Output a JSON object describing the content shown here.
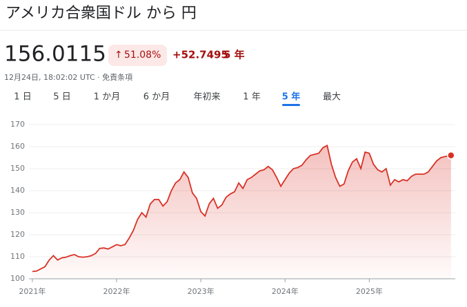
{
  "header": {
    "title": "アメリカ合衆国ドル から 円",
    "price": "156.0115",
    "change_percent": "51.08%",
    "change_abs": "+52.7495",
    "change_period": "5 年",
    "timestamp": "12月24日, 18:02:02 UTC · 免責条項"
  },
  "tabs": [
    "1 日",
    "5 日",
    "1 か月",
    "6 か月",
    "年初来",
    "1 年",
    "5 年",
    "最大"
  ],
  "active_tab": 6,
  "chart_data": {
    "type": "area",
    "color": "#d93025",
    "grid": true,
    "x": [
      2021.0,
      2021.05,
      2021.1,
      2021.15,
      2021.2,
      2021.25,
      2021.3,
      2021.35,
      2021.4,
      2021.45,
      2021.5,
      2021.55,
      2021.6,
      2021.65,
      2021.7,
      2021.75,
      2021.8,
      2021.85,
      2021.9,
      2021.95,
      2022.0,
      2022.05,
      2022.1,
      2022.15,
      2022.2,
      2022.25,
      2022.3,
      2022.35,
      2022.4,
      2022.45,
      2022.5,
      2022.55,
      2022.6,
      2022.65,
      2022.7,
      2022.75,
      2022.8,
      2022.85,
      2022.9,
      2022.95,
      2023.0,
      2023.05,
      2023.1,
      2023.15,
      2023.2,
      2023.25,
      2023.3,
      2023.35,
      2023.4,
      2023.45,
      2023.5,
      2023.55,
      2023.6,
      2023.65,
      2023.7,
      2023.75,
      2023.8,
      2023.85,
      2023.9,
      2023.95,
      2024.0,
      2024.05,
      2024.1,
      2024.15,
      2024.2,
      2024.25,
      2024.3,
      2024.35,
      2024.4,
      2024.45,
      2024.5,
      2024.55,
      2024.6,
      2024.65,
      2024.7,
      2024.75,
      2024.8,
      2024.85,
      2024.9,
      2024.95,
      2025.0,
      2025.05,
      2025.1,
      2025.15,
      2025.2,
      2025.25,
      2025.3,
      2025.35,
      2025.4,
      2025.45,
      2025.5,
      2025.55,
      2025.6,
      2025.65,
      2025.7,
      2025.75,
      2025.8,
      2025.85,
      2025.9,
      2025.97
    ],
    "series": [
      {
        "values": [
          103.3,
          103.5,
          104.5,
          105.5,
          108.5,
          110.5,
          108.5,
          109.5,
          109.8,
          110.5,
          111,
          110,
          109.8,
          110,
          110.5,
          111.5,
          113.8,
          114,
          113.5,
          114.5,
          115.5,
          115,
          115.5,
          118.5,
          122,
          127,
          130,
          128,
          134,
          136,
          136,
          133,
          135,
          140,
          143.5,
          145,
          148.5,
          146,
          139,
          136.5,
          130.5,
          128.5,
          134,
          136.5,
          132,
          133.5,
          137,
          138.5,
          139.5,
          143.5,
          141,
          145,
          146,
          147.5,
          149,
          149.5,
          151,
          149.5,
          146,
          142,
          145,
          148,
          150,
          150.5,
          151.5,
          154,
          156,
          156.5,
          157,
          159.5,
          160.5,
          152,
          146,
          142,
          143,
          149,
          153,
          154.5,
          150,
          157.5,
          157,
          152,
          149.5,
          148.5,
          150,
          142.5,
          145,
          144,
          145,
          144.5,
          146.5,
          147.5,
          147.5,
          147.5,
          148.5,
          151,
          153.5,
          155,
          155.5,
          156.0115
        ]
      }
    ],
    "xlim": [
      2020.96,
      2025.98
    ],
    "xticks": [
      {
        "value": 2021,
        "label": "2021年"
      },
      {
        "value": 2022,
        "label": "2022年"
      },
      {
        "value": 2023,
        "label": "2023年"
      },
      {
        "value": 2024,
        "label": "2024年"
      },
      {
        "value": 2025,
        "label": "2025年"
      }
    ],
    "ylim": [
      100,
      170
    ],
    "yticks": [
      100,
      110,
      120,
      130,
      140,
      150,
      160,
      170
    ]
  }
}
